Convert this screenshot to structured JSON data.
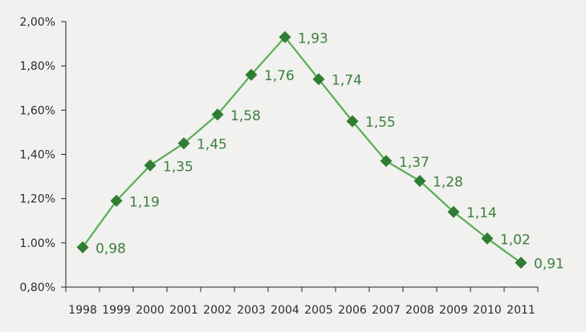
{
  "chart_data": {
    "type": "line",
    "title": "",
    "xlabel": "",
    "ylabel": "",
    "categories": [
      "1998",
      "1999",
      "2000",
      "2001",
      "2002",
      "2003",
      "2004",
      "2005",
      "2006",
      "2007",
      "2008",
      "2009",
      "2010",
      "2011"
    ],
    "series": [
      {
        "values": [
          0.98,
          1.19,
          1.35,
          1.45,
          1.58,
          1.76,
          1.93,
          1.74,
          1.55,
          1.37,
          1.28,
          1.14,
          1.02,
          0.91
        ],
        "data_labels": [
          "0,98",
          "1,19",
          "1,35",
          "1,45",
          "1,58",
          "1,76",
          "1,93",
          "1,74",
          "1,55",
          "1,37",
          "1,28",
          "1,14",
          "1,02",
          "0,91"
        ]
      }
    ],
    "ylim": [
      0.8,
      2.0
    ],
    "yticks": [
      0.8,
      1.0,
      1.2,
      1.4,
      1.6,
      1.8,
      2.0
    ],
    "ytick_labels": [
      "0,80%",
      "1.00%",
      "1,20%",
      "1,40%",
      "1,60%",
      "1,80%",
      "2,00%"
    ],
    "grid": false,
    "legend": "none",
    "colors": {
      "line": "#58ad55",
      "marker": "#2f7d32",
      "label": "#3c7f3d",
      "axis": "#222222",
      "background": "#f1f1ef"
    },
    "marker": "diamond"
  }
}
